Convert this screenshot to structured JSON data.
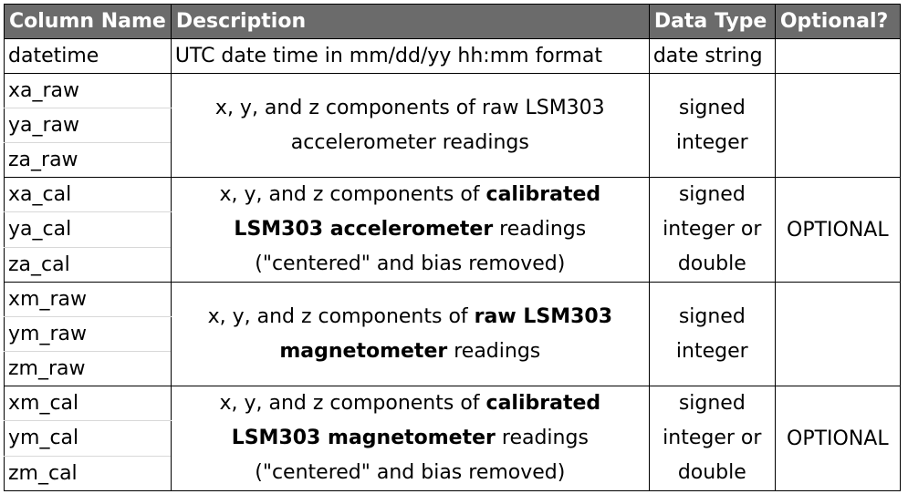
{
  "headers": {
    "column_name": "Column Name",
    "description": "Description",
    "data_type": "Data Type",
    "optional": "Optional?"
  },
  "datetime_row": {
    "name": "datetime",
    "description": "UTC date time in mm/dd/yy hh:mm format",
    "type": "date string",
    "optional": ""
  },
  "accel_raw": {
    "names": [
      "xa_raw",
      "ya_raw",
      "za_raw"
    ],
    "desc_line1": "x, y, and z components of raw LSM303",
    "desc_line2": "accelerometer readings",
    "type_line1": "signed",
    "type_line2": "integer",
    "optional": ""
  },
  "accel_cal": {
    "names": [
      "xa_cal",
      "ya_cal",
      "za_cal"
    ],
    "desc_a": "x, y, and z components of ",
    "desc_b": "calibrated",
    "desc_c": "LSM303 accelerometer",
    "desc_d": " readings",
    "desc_e": "(\"centered\" and bias removed)",
    "type_line1": "signed",
    "type_line2": "integer or",
    "type_line3": "double",
    "optional": "OPTIONAL"
  },
  "mag_raw": {
    "names": [
      "xm_raw",
      "ym_raw",
      "zm_raw"
    ],
    "desc_a": "x, y, and z components of ",
    "desc_b": "raw LSM303",
    "desc_c": "magnetometer",
    "desc_d": " readings",
    "type_line1": "signed",
    "type_line2": "integer",
    "optional": ""
  },
  "mag_cal": {
    "names": [
      "xm_cal",
      "ym_cal",
      "zm_cal"
    ],
    "desc_a": "x, y, and z components of ",
    "desc_b": "calibrated",
    "desc_c": "LSM303 magnetometer",
    "desc_d": " readings",
    "desc_e": "(\"centered\" and bias removed)",
    "type_line1": "signed",
    "type_line2": "integer or",
    "type_line3": "double",
    "optional": "OPTIONAL"
  },
  "colors": {
    "header_bg": "#6b6b6b",
    "header_text": "#ffffff",
    "grid": "#000000"
  }
}
